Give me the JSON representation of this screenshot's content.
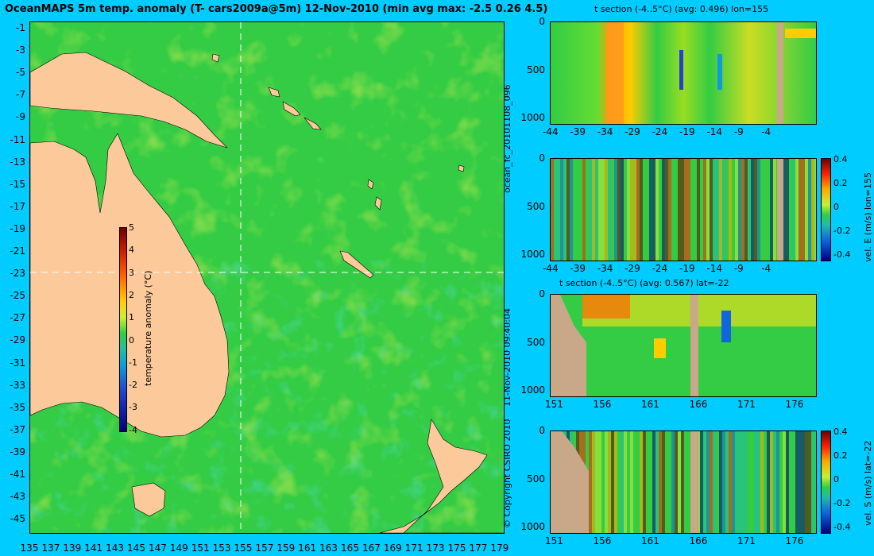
{
  "title": "OceanMAPS 5m temp. anomaly (T- cars2009a@5m) 12-Nov-2010 (min avg max: -2.5 0.26 4.5)",
  "colors": {
    "background": "#00ccff",
    "land": "#fcc99a",
    "ocean_base": "#33cc44",
    "section_land": "#c8a888"
  },
  "map": {
    "lat_ticks": [
      "-1",
      "-3",
      "-5",
      "-7",
      "-9",
      "-11",
      "-13",
      "-15",
      "-17",
      "-19",
      "-21",
      "-23",
      "-25",
      "-27",
      "-29",
      "-31",
      "-33",
      "-35",
      "-37",
      "-39",
      "-41",
      "-43",
      "-45"
    ],
    "lon_ticks": [
      "135",
      "137",
      "139",
      "141",
      "143",
      "145",
      "147",
      "149",
      "151",
      "153",
      "155",
      "157",
      "159",
      "161",
      "163",
      "165",
      "167",
      "169",
      "171",
      "173",
      "175",
      "177",
      "179"
    ],
    "colorbar": {
      "label": "temperature anomaly (°C)",
      "ticks": [
        "5",
        "4",
        "3",
        "2",
        "1",
        "0",
        "-1",
        "-2",
        "-3",
        "-4"
      ]
    }
  },
  "side_text": {
    "run_id": "ocean_fc_20101108_096",
    "timestamp": "11-Nov-2010 09:40:04",
    "copyright": "© Copyright CSIRO 2010"
  },
  "panels": [
    {
      "title": "t section (-4..5°C) (avg: 0.496) lon=155",
      "depth_ticks": [
        "0",
        "500",
        "1000"
      ],
      "x_ticks": [
        "-44",
        "-39",
        "-34",
        "-29",
        "-24",
        "-19",
        "-14",
        "-9",
        "-4"
      ]
    },
    {
      "title": "",
      "depth_ticks": [
        "0",
        "500",
        "1000"
      ],
      "x_ticks": [
        "-44",
        "-39",
        "-34",
        "-29",
        "-24",
        "-19",
        "-14",
        "-9",
        "-4"
      ],
      "colorbar": {
        "label": "vel. E (m/s) lon=155",
        "ticks": [
          "0.4",
          "0.2",
          "0",
          "-0.2",
          "-0.4"
        ]
      }
    },
    {
      "title": "t section (-4..5°C) (avg: 0.567) lat=-22",
      "depth_ticks": [
        "0",
        "500",
        "1000"
      ],
      "x_ticks": [
        "151",
        "156",
        "161",
        "166",
        "171",
        "176"
      ]
    },
    {
      "title": "",
      "depth_ticks": [
        "0",
        "500",
        "1000"
      ],
      "x_ticks": [
        "151",
        "156",
        "161",
        "166",
        "171",
        "176"
      ],
      "colorbar": {
        "label": "vel. S (m/s) lat=-22",
        "ticks": [
          "0.4",
          "0.2",
          "0",
          "-0.2",
          "-0.4"
        ]
      }
    }
  ]
}
